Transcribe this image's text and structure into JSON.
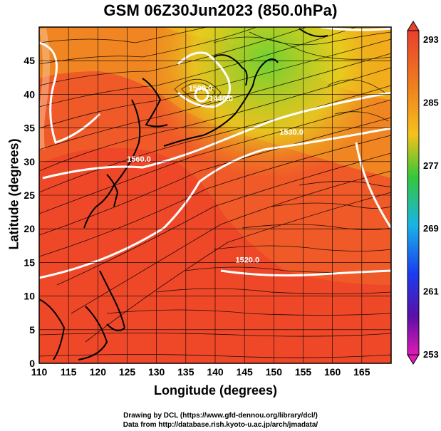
{
  "title": "GSM 06Z30Jun2023 (850.0hPa)",
  "xlabel": "Longitude (degrees)",
  "ylabel": "Latitude  (degrees)",
  "credits": [
    "Drawing by DCL (https://www.gfd-dennou.org/library/dcl/)",
    "Data from http://database.rish.kyoto-u.ac.jp/arch/jmadata/"
  ],
  "map": {
    "lon_range": [
      110,
      170
    ],
    "lat_range": [
      0,
      50
    ],
    "x_ticks": [
      "110",
      "115",
      "120",
      "125",
      "130",
      "135",
      "140",
      "145",
      "150",
      "155",
      "160",
      "165"
    ],
    "y_ticks": [
      "0",
      "5",
      "10",
      "15",
      "20",
      "25",
      "30",
      "35",
      "40",
      "45"
    ],
    "field": "temperature (shaded) with streamlines",
    "contour_labels": [
      {
        "text": "1560.0",
        "lon": 127,
        "lat": 30
      },
      {
        "text": "1500.0",
        "lon": 137.5,
        "lat": 40.5
      },
      {
        "text": "1530.0",
        "lon": 153,
        "lat": 34
      },
      {
        "text": "1440.0",
        "lon": 141,
        "lat": 39
      },
      {
        "text": "1520.0",
        "lon": 145.5,
        "lat": 15
      }
    ],
    "colorbar": {
      "labels": [
        "293",
        "285",
        "277",
        "269",
        "261",
        "253"
      ],
      "colors_top_to_bottom": [
        "#e8402e",
        "#f0821e",
        "#f5c21a",
        "#36c838",
        "#1ab4e6",
        "#1a3cf0",
        "#5a0fa8",
        "#e01ab4"
      ]
    }
  }
}
